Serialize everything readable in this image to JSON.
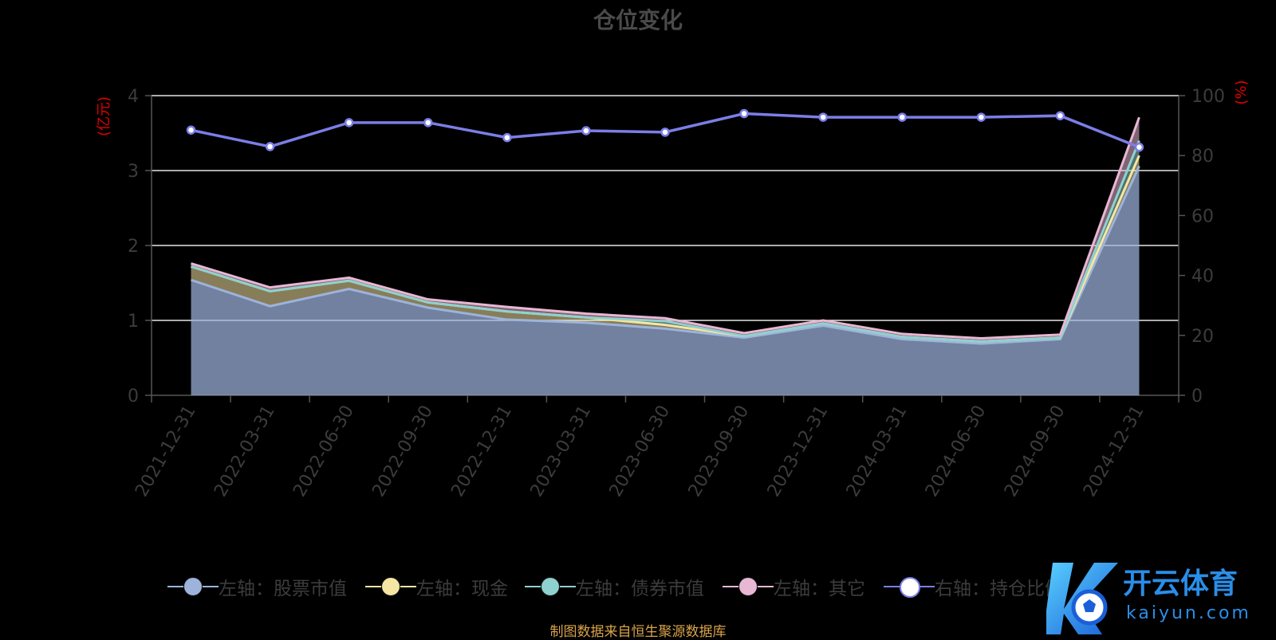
{
  "chart_data": {
    "type": "area",
    "title": "仓位变化",
    "x": [
      "2021-12-31",
      "2022-03-31",
      "2022-06-30",
      "2022-09-30",
      "2022-12-31",
      "2023-03-31",
      "2023-06-30",
      "2023-09-30",
      "2023-12-31",
      "2024-03-31",
      "2024-06-30",
      "2024-09-30",
      "2024-12-31"
    ],
    "y_left": {
      "label": "亿元",
      "ticks": [
        0,
        1,
        2,
        3,
        4
      ],
      "ylim": [
        0,
        4
      ]
    },
    "y_right": {
      "label": "%",
      "ticks": [
        0,
        20,
        40,
        60,
        80,
        100
      ],
      "ylim": [
        0,
        100
      ]
    },
    "series": [
      {
        "name": "左轴：股票市值",
        "axis": "left",
        "stack": true,
        "color": "#9db3dc",
        "values": [
          1.54,
          1.19,
          1.42,
          1.17,
          1.01,
          0.97,
          0.89,
          0.77,
          0.93,
          0.75,
          0.69,
          0.75,
          3.06
        ]
      },
      {
        "name": "左轴：现金",
        "axis": "left",
        "stack": true,
        "color": "#f5e6a3",
        "values": [
          0.18,
          0.2,
          0.11,
          0.07,
          0.11,
          0.07,
          0.05,
          0.02,
          0.03,
          0.03,
          0.03,
          0.02,
          0.14
        ]
      },
      {
        "name": "左轴：债券市值",
        "axis": "left",
        "stack": true,
        "color": "#8fd1cf",
        "values": [
          0,
          0,
          0,
          0,
          0,
          0,
          0.05,
          0,
          0,
          0,
          0,
          0,
          0.2
        ]
      },
      {
        "name": "左轴：其它",
        "axis": "left",
        "stack": true,
        "color": "#e8b7d4",
        "values": [
          0.04,
          0.05,
          0.04,
          0.04,
          0.06,
          0.05,
          0.04,
          0.04,
          0.04,
          0.04,
          0.04,
          0.04,
          0.31
        ]
      },
      {
        "name": "右轴：持仓比例",
        "axis": "right",
        "stack": false,
        "color": "#7b7ee6",
        "values": [
          88.5,
          83,
          91,
          91,
          86,
          88.3,
          87.8,
          94,
          92.8,
          92.8,
          92.8,
          93.3,
          82.8
        ]
      }
    ],
    "grid": true,
    "legend_position": "bottom"
  },
  "source_note": "制图数据来自恒生聚源数据库",
  "watermark": {
    "brand": "开云体育",
    "domain": "kaiyun.com"
  }
}
